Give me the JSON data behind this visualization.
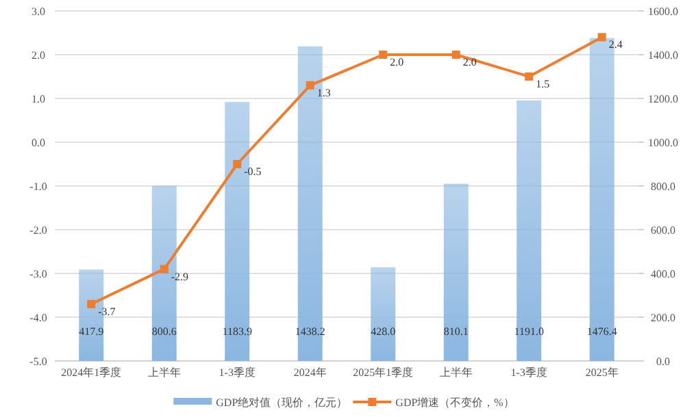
{
  "chart_data": {
    "type": "bar",
    "categories": [
      "2024年1季度",
      "上半年",
      "1-3季度",
      "2024年",
      "2025年1季度",
      "上半年",
      "1-3季度",
      "2025年"
    ],
    "series": [
      {
        "name": "GDP绝对值（现价，亿元）",
        "axis": "y2",
        "color": "#8ab6e0",
        "values": [
          417.9,
          800.6,
          1183.9,
          1438.2,
          428.0,
          810.1,
          1191.0,
          1476.4
        ],
        "value_labels": [
          "417.9",
          "800.6",
          "1183.9",
          "1438.2",
          "428.0",
          "810.1",
          "1191.0",
          "1476.4"
        ]
      },
      {
        "name": "GDP增速（不变价，%）",
        "type": "line",
        "axis": "y",
        "color": "#ed7d31",
        "marker": "square",
        "values": [
          -3.7,
          -2.9,
          -0.5,
          1.3,
          2.0,
          2.0,
          1.5,
          2.4
        ],
        "value_labels": [
          "-3.7",
          "-2.9",
          "-0.5",
          "1.3",
          "2.0",
          "2.0",
          "1.5",
          "2.4"
        ]
      }
    ],
    "ylim": [
      -5,
      3
    ],
    "yticks": [
      {
        "value": -5,
        "label": "-5.0"
      },
      {
        "value": -4,
        "label": "-4.0"
      },
      {
        "value": -3,
        "label": "-3.0"
      },
      {
        "value": -2,
        "label": "-2.0"
      },
      {
        "value": -1,
        "label": "-1.0"
      },
      {
        "value": 0,
        "label": "0.0"
      },
      {
        "value": 1,
        "label": "1.0"
      },
      {
        "value": 2,
        "label": "2.0"
      },
      {
        "value": 3,
        "label": "3.0"
      }
    ],
    "y2lim": [
      0,
      1600
    ],
    "y2ticks": [
      {
        "value": 0,
        "label": "0.0"
      },
      {
        "value": 200,
        "label": "200.0"
      },
      {
        "value": 400,
        "label": "400.0"
      },
      {
        "value": 600,
        "label": "600.0"
      },
      {
        "value": 800,
        "label": "800.0"
      },
      {
        "value": 1000,
        "label": "1000.0"
      },
      {
        "value": 1200,
        "label": "1200.0"
      },
      {
        "value": 1400,
        "label": "1400.0"
      },
      {
        "value": 1600,
        "label": "1600.0"
      }
    ],
    "grid": "y",
    "legend": "bottom"
  }
}
